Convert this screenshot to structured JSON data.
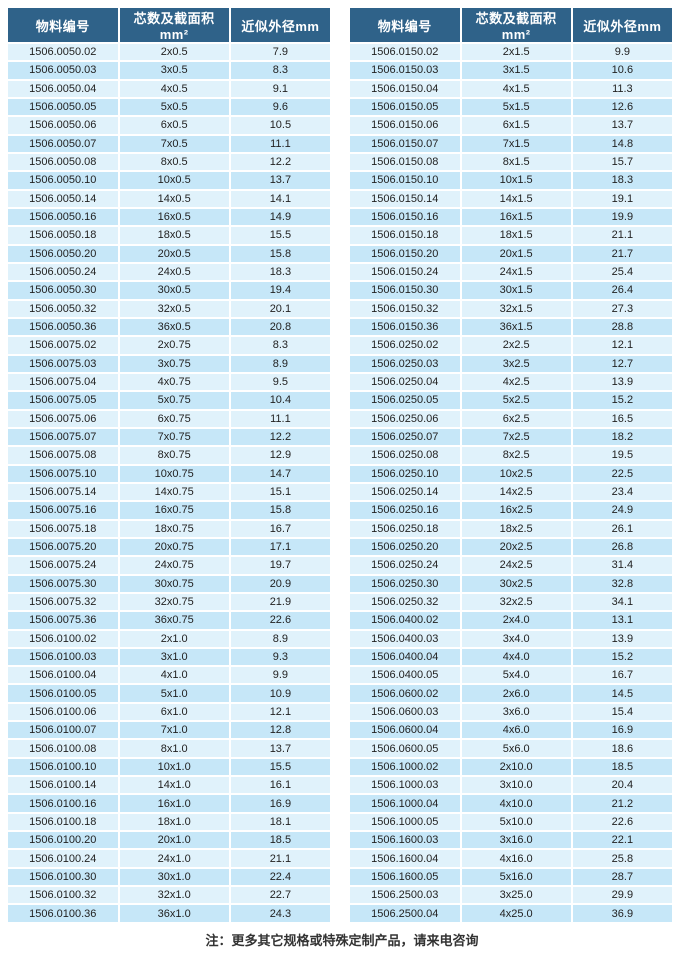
{
  "headers": [
    "物料编号",
    "芯数及截面积mm²",
    "近似外径mm"
  ],
  "left_table": [
    [
      "1506.0050.02",
      "2x0.5",
      "7.9"
    ],
    [
      "1506.0050.03",
      "3x0.5",
      "8.3"
    ],
    [
      "1506.0050.04",
      "4x0.5",
      "9.1"
    ],
    [
      "1506.0050.05",
      "5x0.5",
      "9.6"
    ],
    [
      "1506.0050.06",
      "6x0.5",
      "10.5"
    ],
    [
      "1506.0050.07",
      "7x0.5",
      "11.1"
    ],
    [
      "1506.0050.08",
      "8x0.5",
      "12.2"
    ],
    [
      "1506.0050.10",
      "10x0.5",
      "13.7"
    ],
    [
      "1506.0050.14",
      "14x0.5",
      "14.1"
    ],
    [
      "1506.0050.16",
      "16x0.5",
      "14.9"
    ],
    [
      "1506.0050.18",
      "18x0.5",
      "15.5"
    ],
    [
      "1506.0050.20",
      "20x0.5",
      "15.8"
    ],
    [
      "1506.0050.24",
      "24x0.5",
      "18.3"
    ],
    [
      "1506.0050.30",
      "30x0.5",
      "19.4"
    ],
    [
      "1506.0050.32",
      "32x0.5",
      "20.1"
    ],
    [
      "1506.0050.36",
      "36x0.5",
      "20.8"
    ],
    [
      "1506.0075.02",
      "2x0.75",
      "8.3"
    ],
    [
      "1506.0075.03",
      "3x0.75",
      "8.9"
    ],
    [
      "1506.0075.04",
      "4x0.75",
      "9.5"
    ],
    [
      "1506.0075.05",
      "5x0.75",
      "10.4"
    ],
    [
      "1506.0075.06",
      "6x0.75",
      "11.1"
    ],
    [
      "1506.0075.07",
      "7x0.75",
      "12.2"
    ],
    [
      "1506.0075.08",
      "8x0.75",
      "12.9"
    ],
    [
      "1506.0075.10",
      "10x0.75",
      "14.7"
    ],
    [
      "1506.0075.14",
      "14x0.75",
      "15.1"
    ],
    [
      "1506.0075.16",
      "16x0.75",
      "15.8"
    ],
    [
      "1506.0075.18",
      "18x0.75",
      "16.7"
    ],
    [
      "1506.0075.20",
      "20x0.75",
      "17.1"
    ],
    [
      "1506.0075.24",
      "24x0.75",
      "19.7"
    ],
    [
      "1506.0075.30",
      "30x0.75",
      "20.9"
    ],
    [
      "1506.0075.32",
      "32x0.75",
      "21.9"
    ],
    [
      "1506.0075.36",
      "36x0.75",
      "22.6"
    ],
    [
      "1506.0100.02",
      "2x1.0",
      "8.9"
    ],
    [
      "1506.0100.03",
      "3x1.0",
      "9.3"
    ],
    [
      "1506.0100.04",
      "4x1.0",
      "9.9"
    ],
    [
      "1506.0100.05",
      "5x1.0",
      "10.9"
    ],
    [
      "1506.0100.06",
      "6x1.0",
      "12.1"
    ],
    [
      "1506.0100.07",
      "7x1.0",
      "12.8"
    ],
    [
      "1506.0100.08",
      "8x1.0",
      "13.7"
    ],
    [
      "1506.0100.10",
      "10x1.0",
      "15.5"
    ],
    [
      "1506.0100.14",
      "14x1.0",
      "16.1"
    ],
    [
      "1506.0100.16",
      "16x1.0",
      "16.9"
    ],
    [
      "1506.0100.18",
      "18x1.0",
      "18.1"
    ],
    [
      "1506.0100.20",
      "20x1.0",
      "18.5"
    ],
    [
      "1506.0100.24",
      "24x1.0",
      "21.1"
    ],
    [
      "1506.0100.30",
      "30x1.0",
      "22.4"
    ],
    [
      "1506.0100.32",
      "32x1.0",
      "22.7"
    ],
    [
      "1506.0100.36",
      "36x1.0",
      "24.3"
    ]
  ],
  "right_table": [
    [
      "1506.0150.02",
      "2x1.5",
      "9.9"
    ],
    [
      "1506.0150.03",
      "3x1.5",
      "10.6"
    ],
    [
      "1506.0150.04",
      "4x1.5",
      "11.3"
    ],
    [
      "1506.0150.05",
      "5x1.5",
      "12.6"
    ],
    [
      "1506.0150.06",
      "6x1.5",
      "13.7"
    ],
    [
      "1506.0150.07",
      "7x1.5",
      "14.8"
    ],
    [
      "1506.0150.08",
      "8x1.5",
      "15.7"
    ],
    [
      "1506.0150.10",
      "10x1.5",
      "18.3"
    ],
    [
      "1506.0150.14",
      "14x1.5",
      "19.1"
    ],
    [
      "1506.0150.16",
      "16x1.5",
      "19.9"
    ],
    [
      "1506.0150.18",
      "18x1.5",
      "21.1"
    ],
    [
      "1506.0150.20",
      "20x1.5",
      "21.7"
    ],
    [
      "1506.0150.24",
      "24x1.5",
      "25.4"
    ],
    [
      "1506.0150.30",
      "30x1.5",
      "26.4"
    ],
    [
      "1506.0150.32",
      "32x1.5",
      "27.3"
    ],
    [
      "1506.0150.36",
      "36x1.5",
      "28.8"
    ],
    [
      "1506.0250.02",
      "2x2.5",
      "12.1"
    ],
    [
      "1506.0250.03",
      "3x2.5",
      "12.7"
    ],
    [
      "1506.0250.04",
      "4x2.5",
      "13.9"
    ],
    [
      "1506.0250.05",
      "5x2.5",
      "15.2"
    ],
    [
      "1506.0250.06",
      "6x2.5",
      "16.5"
    ],
    [
      "1506.0250.07",
      "7x2.5",
      "18.2"
    ],
    [
      "1506.0250.08",
      "8x2.5",
      "19.5"
    ],
    [
      "1506.0250.10",
      "10x2.5",
      "22.5"
    ],
    [
      "1506.0250.14",
      "14x2.5",
      "23.4"
    ],
    [
      "1506.0250.16",
      "16x2.5",
      "24.9"
    ],
    [
      "1506.0250.18",
      "18x2.5",
      "26.1"
    ],
    [
      "1506.0250.20",
      "20x2.5",
      "26.8"
    ],
    [
      "1506.0250.24",
      "24x2.5",
      "31.4"
    ],
    [
      "1506.0250.30",
      "30x2.5",
      "32.8"
    ],
    [
      "1506.0250.32",
      "32x2.5",
      "34.1"
    ],
    [
      "1506.0400.02",
      "2x4.0",
      "13.1"
    ],
    [
      "1506.0400.03",
      "3x4.0",
      "13.9"
    ],
    [
      "1506.0400.04",
      "4x4.0",
      "15.2"
    ],
    [
      "1506.0400.05",
      "5x4.0",
      "16.7"
    ],
    [
      "1506.0600.02",
      "2x6.0",
      "14.5"
    ],
    [
      "1506.0600.03",
      "3x6.0",
      "15.4"
    ],
    [
      "1506.0600.04",
      "4x6.0",
      "16.9"
    ],
    [
      "1506.0600.05",
      "5x6.0",
      "18.6"
    ],
    [
      "1506.1000.02",
      "2x10.0",
      "18.5"
    ],
    [
      "1506.1000.03",
      "3x10.0",
      "20.4"
    ],
    [
      "1506.1000.04",
      "4x10.0",
      "21.2"
    ],
    [
      "1506.1000.05",
      "5x10.0",
      "22.6"
    ],
    [
      "1506.1600.03",
      "3x16.0",
      "22.1"
    ],
    [
      "1506.1600.04",
      "4x16.0",
      "25.8"
    ],
    [
      "1506.1600.05",
      "5x16.0",
      "28.7"
    ],
    [
      "1506.2500.03",
      "3x25.0",
      "29.9"
    ],
    [
      "1506.2500.04",
      "4x25.0",
      "36.9"
    ]
  ],
  "colors": {
    "header_bg": "#2f6289",
    "row_light": "#e0f2fb",
    "row_dark": "#c6e7f8"
  },
  "note": "注：更多其它规格或特殊定制产品，请来电咨询"
}
